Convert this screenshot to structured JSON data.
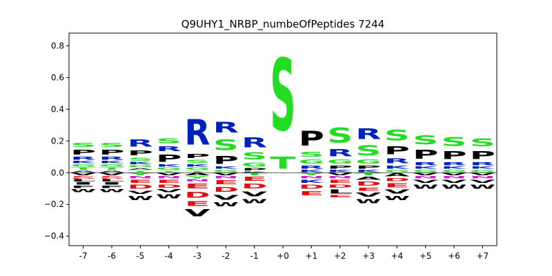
{
  "chart_data": {
    "type": "sequence-logo",
    "title": "Q9UHY1_NRBP_numbeOfPeptides 7244",
    "positions": [
      "-7",
      "-6",
      "-5",
      "-4",
      "-3",
      "-2",
      "-1",
      "+0",
      "+1",
      "+2",
      "+3",
      "+4",
      "+5",
      "+6",
      "+7"
    ],
    "ylim": [
      -0.46,
      0.88
    ],
    "yticks": [
      -0.4,
      -0.2,
      0.0,
      0.2,
      0.4,
      0.6,
      0.8
    ],
    "ytick_labels": [
      "−0.4",
      "−0.2",
      "0.0",
      "0.2",
      "0.4",
      "0.6",
      "0.8"
    ],
    "grid": false,
    "colors": {
      "S": "#22dd22",
      "T": "#22dd22",
      "G": "#22dd22",
      "Y": "#22dd22",
      "C": "#22dd22",
      "R": "#0022bb",
      "K": "#0022bb",
      "H": "#0022bb",
      "D": "#dd1111",
      "E": "#dd1111",
      "N": "#cc22cc",
      "Q": "#cc22cc",
      "P": "#000000",
      "A": "#000000",
      "V": "#000000",
      "L": "#000000",
      "I": "#000000",
      "M": "#000000",
      "F": "#000000",
      "W": "#000000"
    },
    "stacks": [
      {
        "pos": "-7",
        "up": [
          [
            "S",
            0.04
          ],
          [
            "P",
            0.05
          ],
          [
            "R",
            0.03
          ],
          [
            "K",
            0.02
          ],
          [
            "G",
            0.02
          ],
          [
            "T",
            0.02
          ],
          [
            "A",
            0.015
          ]
        ],
        "down": [
          [
            "V",
            0.02
          ],
          [
            "E",
            0.01
          ],
          [
            "D",
            0.01
          ],
          [
            "L",
            0.02
          ],
          [
            "I",
            0.02
          ],
          [
            "F",
            0.02
          ],
          [
            "W",
            0.03
          ]
        ]
      },
      {
        "pos": "-6",
        "up": [
          [
            "S",
            0.04
          ],
          [
            "P",
            0.05
          ],
          [
            "R",
            0.03
          ],
          [
            "K",
            0.02
          ],
          [
            "G",
            0.02
          ],
          [
            "T",
            0.02
          ],
          [
            "A",
            0.015
          ]
        ],
        "down": [
          [
            "V",
            0.02
          ],
          [
            "E",
            0.01
          ],
          [
            "D",
            0.01
          ],
          [
            "L",
            0.02
          ],
          [
            "I",
            0.02
          ],
          [
            "F",
            0.02
          ],
          [
            "W",
            0.03
          ]
        ]
      },
      {
        "pos": "-5",
        "up": [
          [
            "R",
            0.07
          ],
          [
            "P",
            0.05
          ],
          [
            "S",
            0.03
          ],
          [
            "K",
            0.02
          ],
          [
            "G",
            0.02
          ],
          [
            "A",
            0.015
          ],
          [
            "T",
            0.015
          ]
        ],
        "down": [
          [
            "Y",
            0.02
          ],
          [
            "N",
            0.02
          ],
          [
            "E",
            0.03
          ],
          [
            "D",
            0.04
          ],
          [
            "V",
            0.03
          ],
          [
            "W",
            0.04
          ]
        ]
      },
      {
        "pos": "-4",
        "up": [
          [
            "S",
            0.05
          ],
          [
            "R",
            0.05
          ],
          [
            "P",
            0.07
          ],
          [
            "K",
            0.02
          ],
          [
            "G",
            0.02
          ],
          [
            "T",
            0.015
          ]
        ],
        "down": [
          [
            "V",
            0.02
          ],
          [
            "N",
            0.02
          ],
          [
            "E",
            0.03
          ],
          [
            "D",
            0.03
          ],
          [
            "V",
            0.03
          ],
          [
            "W",
            0.04
          ]
        ]
      },
      {
        "pos": "-3",
        "up": [
          [
            "R",
            0.26
          ],
          [
            "P",
            0.04
          ],
          [
            "S",
            0.03
          ],
          [
            "K",
            0.02
          ],
          [
            "G",
            0.02
          ],
          [
            "T",
            0.015
          ]
        ],
        "down": [
          [
            "A",
            0.02
          ],
          [
            "Y",
            0.02
          ],
          [
            "N",
            0.02
          ],
          [
            "E",
            0.05
          ],
          [
            "D",
            0.06
          ],
          [
            "E",
            0.05
          ],
          [
            "V",
            0.07
          ]
        ]
      },
      {
        "pos": "-2",
        "up": [
          [
            "R",
            0.11
          ],
          [
            "S",
            0.11
          ],
          [
            "P",
            0.08
          ],
          [
            "K",
            0.02
          ],
          [
            "G",
            0.02
          ]
        ],
        "down": [
          [
            "V",
            0.02
          ],
          [
            "N",
            0.02
          ],
          [
            "E",
            0.04
          ],
          [
            "D",
            0.05
          ],
          [
            "V",
            0.05
          ],
          [
            "W",
            0.04
          ]
        ]
      },
      {
        "pos": "-1",
        "up": [
          [
            "R",
            0.1
          ],
          [
            "S",
            0.07
          ],
          [
            "G",
            0.04
          ],
          [
            "P",
            0.02
          ],
          [
            "K",
            0.01
          ]
        ],
        "down": [
          [
            "T",
            0.02
          ],
          [
            "E",
            0.04
          ],
          [
            "D",
            0.05
          ],
          [
            "V",
            0.05
          ],
          [
            "W",
            0.04
          ]
        ]
      },
      {
        "pos": "+0",
        "up": [
          [
            "S",
            0.73
          ],
          [
            "T",
            0.12
          ]
        ],
        "down": []
      },
      {
        "pos": "+1",
        "up": [
          [
            "P",
            0.15
          ],
          [
            "S",
            0.05
          ],
          [
            "G",
            0.04
          ],
          [
            "R",
            0.03
          ],
          [
            "K",
            0.02
          ]
        ],
        "down": [
          [
            "Y",
            0.02
          ],
          [
            "N",
            0.02
          ],
          [
            "K",
            0.03
          ],
          [
            "D",
            0.04
          ],
          [
            "E",
            0.04
          ]
        ]
      },
      {
        "pos": "+2",
        "up": [
          [
            "S",
            0.15
          ],
          [
            "R",
            0.07
          ],
          [
            "G",
            0.04
          ],
          [
            "P",
            0.03
          ],
          [
            "K",
            0.02
          ]
        ],
        "down": [
          [
            "V",
            0.02
          ],
          [
            "N",
            0.02
          ],
          [
            "E",
            0.03
          ],
          [
            "D",
            0.03
          ],
          [
            "L",
            0.04
          ],
          [
            "E",
            0.02
          ]
        ]
      },
      {
        "pos": "+3",
        "up": [
          [
            "R",
            0.11
          ],
          [
            "S",
            0.1
          ],
          [
            "G",
            0.04
          ],
          [
            "P",
            0.03
          ],
          [
            "K",
            0.02
          ]
        ],
        "down": [
          [
            "T",
            0.02
          ],
          [
            "A",
            0.03
          ],
          [
            "D",
            0.04
          ],
          [
            "E",
            0.03
          ],
          [
            "V",
            0.04
          ],
          [
            "W",
            0.04
          ]
        ]
      },
      {
        "pos": "+4",
        "up": [
          [
            "S",
            0.11
          ],
          [
            "P",
            0.08
          ],
          [
            "R",
            0.05
          ],
          [
            "K",
            0.03
          ],
          [
            "G",
            0.02
          ]
        ],
        "down": [
          [
            "A",
            0.03
          ],
          [
            "D",
            0.03
          ],
          [
            "E",
            0.04
          ],
          [
            "V",
            0.04
          ],
          [
            "W",
            0.04
          ]
        ]
      },
      {
        "pos": "+5",
        "up": [
          [
            "S",
            0.09
          ],
          [
            "P",
            0.09
          ],
          [
            "R",
            0.03
          ],
          [
            "K",
            0.02
          ],
          [
            "G",
            0.02
          ]
        ],
        "down": [
          [
            "V",
            0.02
          ],
          [
            "N",
            0.02
          ],
          [
            "V",
            0.03
          ],
          [
            "W",
            0.04
          ]
        ]
      },
      {
        "pos": "+6",
        "up": [
          [
            "S",
            0.09
          ],
          [
            "P",
            0.08
          ],
          [
            "R",
            0.03
          ],
          [
            "K",
            0.02
          ],
          [
            "G",
            0.02
          ]
        ],
        "down": [
          [
            "V",
            0.02
          ],
          [
            "N",
            0.02
          ],
          [
            "V",
            0.03
          ],
          [
            "W",
            0.04
          ]
        ]
      },
      {
        "pos": "+7",
        "up": [
          [
            "S",
            0.08
          ],
          [
            "P",
            0.08
          ],
          [
            "R",
            0.03
          ],
          [
            "K",
            0.02
          ],
          [
            "G",
            0.02
          ]
        ],
        "down": [
          [
            "V",
            0.02
          ],
          [
            "N",
            0.02
          ],
          [
            "V",
            0.03
          ],
          [
            "W",
            0.04
          ]
        ]
      }
    ]
  }
}
